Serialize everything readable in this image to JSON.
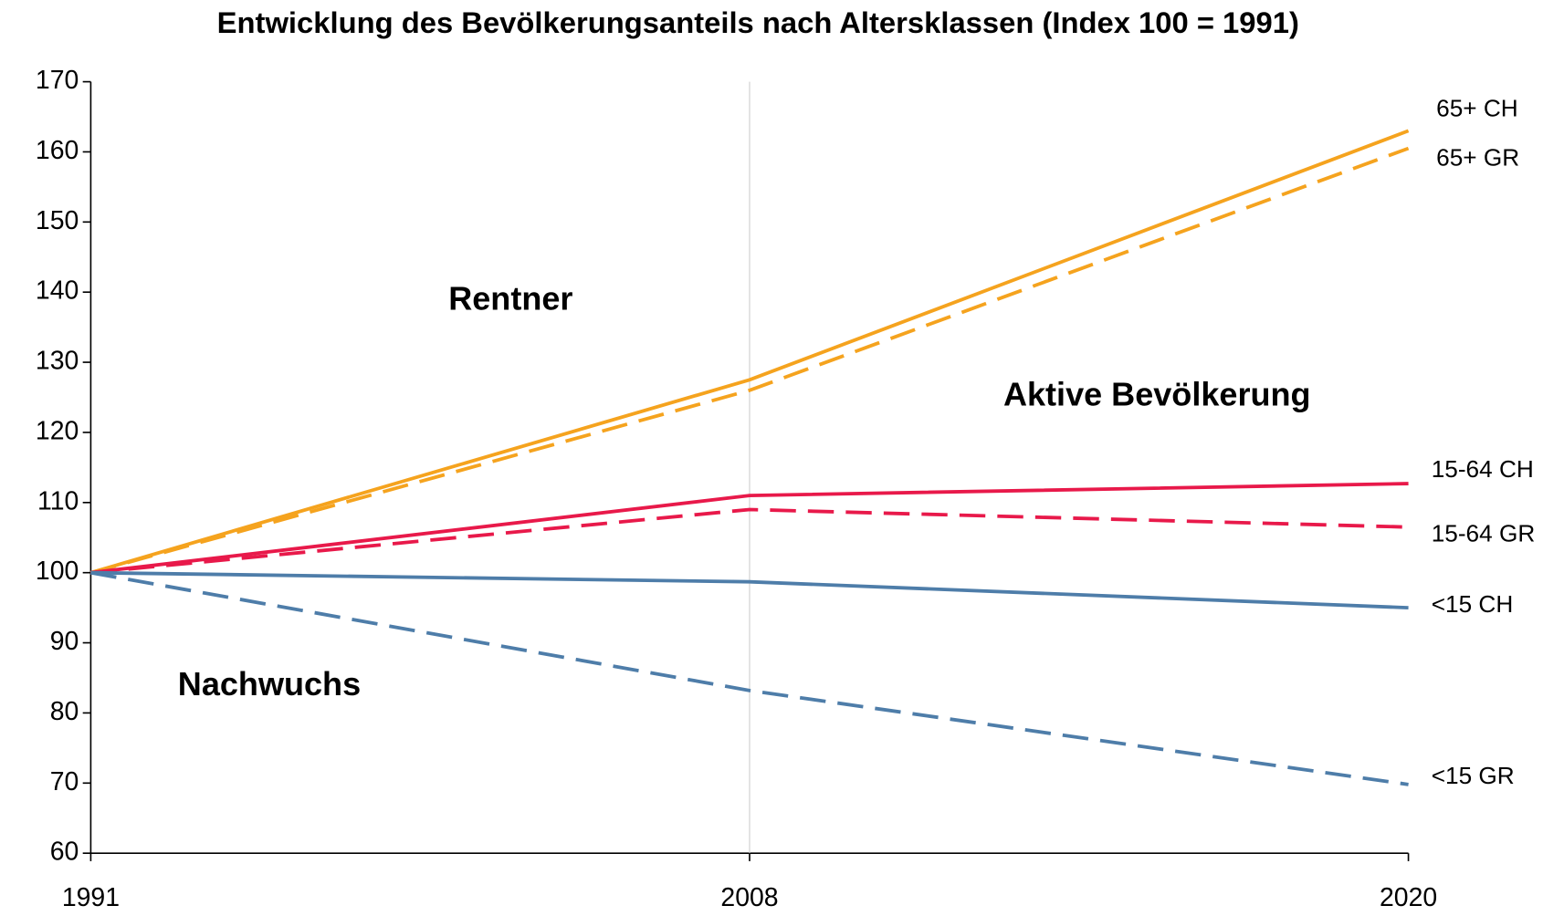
{
  "chart_data": {
    "type": "line",
    "title": "Entwicklung des Bevölkerungsanteils nach Altersklassen (Index 100 = 1991)",
    "categories": [
      "1991",
      "2008",
      "2020"
    ],
    "series": [
      {
        "name": "65+ CH",
        "color": "#f5a31e",
        "dashed": false,
        "values": [
          100,
          127.5,
          163
        ]
      },
      {
        "name": "65+ GR",
        "color": "#f5a31e",
        "dashed": true,
        "values": [
          100,
          126,
          160.5
        ]
      },
      {
        "name": "15-64  CH",
        "color": "#e8194a",
        "dashed": false,
        "values": [
          100,
          111,
          112.7
        ]
      },
      {
        "name": "15-64 GR",
        "color": "#e8194a",
        "dashed": true,
        "values": [
          100,
          109,
          106.5
        ]
      },
      {
        "name": "<15 CH",
        "color": "#4e7da9",
        "dashed": false,
        "values": [
          100,
          98.7,
          95
        ]
      },
      {
        "name": "<15  GR",
        "color": "#4e7da9",
        "dashed": true,
        "values": [
          100,
          83.2,
          69.8
        ]
      }
    ],
    "annotations": [
      "Rentner",
      "Aktive Bevölkerung",
      "Nachwuchs"
    ],
    "ylim": [
      60,
      170
    ],
    "yticks": [
      60,
      70,
      80,
      90,
      100,
      110,
      120,
      130,
      140,
      150,
      160,
      170
    ],
    "grid": "x"
  }
}
